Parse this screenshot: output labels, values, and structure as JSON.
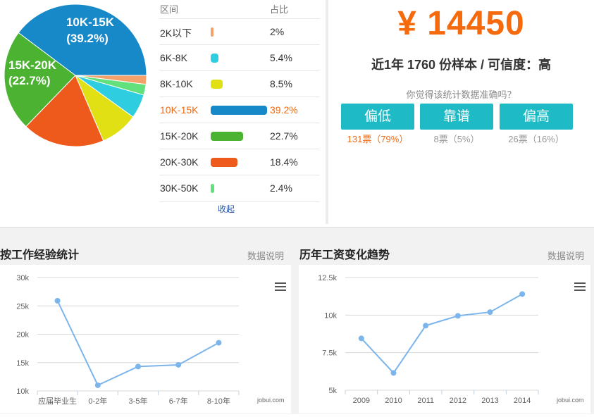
{
  "distribution": {
    "header": {
      "range": "区间",
      "share": "占比"
    },
    "pie_labels": [
      {
        "line1": "10K-15K",
        "line2": "(39.2%)"
      },
      {
        "line1": "15K-20K",
        "line2": "(22.7%)"
      }
    ],
    "rows": [
      {
        "label": "2K以下",
        "pct": "2%",
        "value": 2.0,
        "color": "#f4a26b"
      },
      {
        "label": "6K-8K",
        "pct": "5.4%",
        "value": 5.4,
        "color": "#2fcde0"
      },
      {
        "label": "8K-10K",
        "pct": "8.5%",
        "value": 8.5,
        "color": "#e0e014"
      },
      {
        "label": "10K-15K",
        "pct": "39.2%",
        "value": 39.2,
        "color": "#1789c8",
        "highlight": true
      },
      {
        "label": "15K-20K",
        "pct": "22.7%",
        "value": 22.7,
        "color": "#4cb332"
      },
      {
        "label": "20K-30K",
        "pct": "18.4%",
        "value": 18.4,
        "color": "#ee5a1c"
      },
      {
        "label": "30K-50K",
        "pct": "2.4%",
        "value": 2.4,
        "color": "#62e07c"
      }
    ],
    "collapse_label": "收起"
  },
  "summary": {
    "salary": "¥ 14450",
    "sample_line": "近1年 1760 份样本 / 可信度：高",
    "question": "你觉得该统计数据准确吗？",
    "votes": [
      {
        "label": "偏低",
        "count": "131票（79%）"
      },
      {
        "label": "靠谱",
        "count": "8票（5%）"
      },
      {
        "label": "偏高",
        "count": "26票（16%）"
      }
    ]
  },
  "experience_panel": {
    "title": "按工作经验统计",
    "explain": "数据说明",
    "credit": "jobui.com"
  },
  "trend_panel": {
    "title": "历年工资变化趋势",
    "explain": "数据说明",
    "credit": "jobui.com"
  },
  "chart_data": [
    {
      "type": "pie",
      "categories": [
        "2K以下",
        "6K-8K",
        "8K-10K",
        "10K-15K",
        "15K-20K",
        "20K-30K",
        "30K-50K"
      ],
      "values": [
        2.0,
        5.4,
        8.5,
        39.2,
        22.7,
        18.4,
        2.4
      ],
      "colors": [
        "#f4a26b",
        "#2fcde0",
        "#e0e014",
        "#1789c8",
        "#4cb332",
        "#ee5a1c",
        "#62e07c"
      ]
    },
    {
      "type": "line",
      "categories": [
        "应届毕业生",
        "0-2年",
        "3-5年",
        "6-7年",
        "8-10年"
      ],
      "values": [
        25900,
        11000,
        14300,
        14600,
        18500
      ],
      "yticks": [
        "10k",
        "15k",
        "20k",
        "25k",
        "30k"
      ],
      "ylim": [
        10000,
        30000
      ],
      "color": "#7cb5ec"
    },
    {
      "type": "line",
      "categories": [
        "2009",
        "2010",
        "2011",
        "2012",
        "2013",
        "2014"
      ],
      "values": [
        8450,
        6150,
        9300,
        9950,
        10200,
        11400
      ],
      "yticks": [
        "5k",
        "7.5k",
        "10k",
        "12.5k"
      ],
      "ylim": [
        5000,
        12500
      ],
      "color": "#7cb5ec"
    }
  ]
}
